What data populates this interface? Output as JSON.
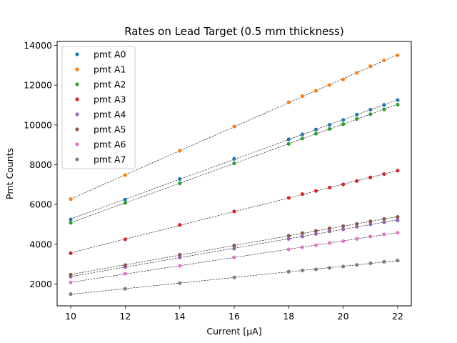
{
  "chart_data": {
    "type": "scatter",
    "title": "Rates on Lead Target (0.5 mm thickness)",
    "xlabel": "Current [μA]",
    "ylabel": "Pmt Counts",
    "xlim": [
      9.5,
      22.5
    ],
    "ylim": [
      900,
      14200
    ],
    "xticks": [
      10,
      12,
      14,
      16,
      18,
      20,
      22
    ],
    "yticks": [
      2000,
      4000,
      6000,
      8000,
      10000,
      12000,
      14000
    ],
    "grid": false,
    "legend_position": "upper-left",
    "fit_lines": "dashed linear fits for every series",
    "x": [
      10,
      12,
      14,
      16,
      18,
      18.5,
      19,
      19.5,
      20,
      20.5,
      21,
      21.5,
      22
    ],
    "series": [
      {
        "name": "pmt A0",
        "color": "#1f77b4",
        "values": [
          5250,
          6250,
          7280,
          8300,
          9280,
          9530,
          9770,
          10010,
          10250,
          10520,
          10770,
          11010,
          11250
        ]
      },
      {
        "name": "pmt A1",
        "color": "#ff7f0e",
        "values": [
          6270,
          7480,
          8700,
          9920,
          11140,
          11450,
          11720,
          12010,
          12290,
          12620,
          12950,
          13250,
          13500
        ]
      },
      {
        "name": "pmt A2",
        "color": "#2ca02c",
        "values": [
          5080,
          6080,
          7060,
          8070,
          9050,
          9320,
          9560,
          9800,
          10040,
          10300,
          10540,
          10780,
          11020
        ]
      },
      {
        "name": "pmt A3",
        "color": "#d62728",
        "values": [
          3550,
          4250,
          4970,
          5650,
          6330,
          6520,
          6680,
          6850,
          7010,
          7180,
          7360,
          7530,
          7700
        ]
      },
      {
        "name": "pmt A4",
        "color": "#9467bd",
        "values": [
          2370,
          2850,
          3330,
          3780,
          4270,
          4390,
          4520,
          4650,
          4750,
          4880,
          5000,
          5100,
          5200
        ]
      },
      {
        "name": "pmt A5",
        "color": "#8c564b",
        "values": [
          2470,
          2950,
          3470,
          3930,
          4430,
          4560,
          4670,
          4800,
          4910,
          5020,
          5150,
          5270,
          5370
        ]
      },
      {
        "name": "pmt A6",
        "color": "#e377c2",
        "values": [
          2080,
          2520,
          2910,
          3340,
          3740,
          3850,
          3950,
          4060,
          4150,
          4270,
          4390,
          4500,
          4580
        ]
      },
      {
        "name": "pmt A7",
        "color": "#7f7f7f",
        "values": [
          1490,
          1760,
          2040,
          2330,
          2620,
          2680,
          2740,
          2810,
          2880,
          2960,
          3040,
          3120,
          3180
        ]
      }
    ]
  }
}
